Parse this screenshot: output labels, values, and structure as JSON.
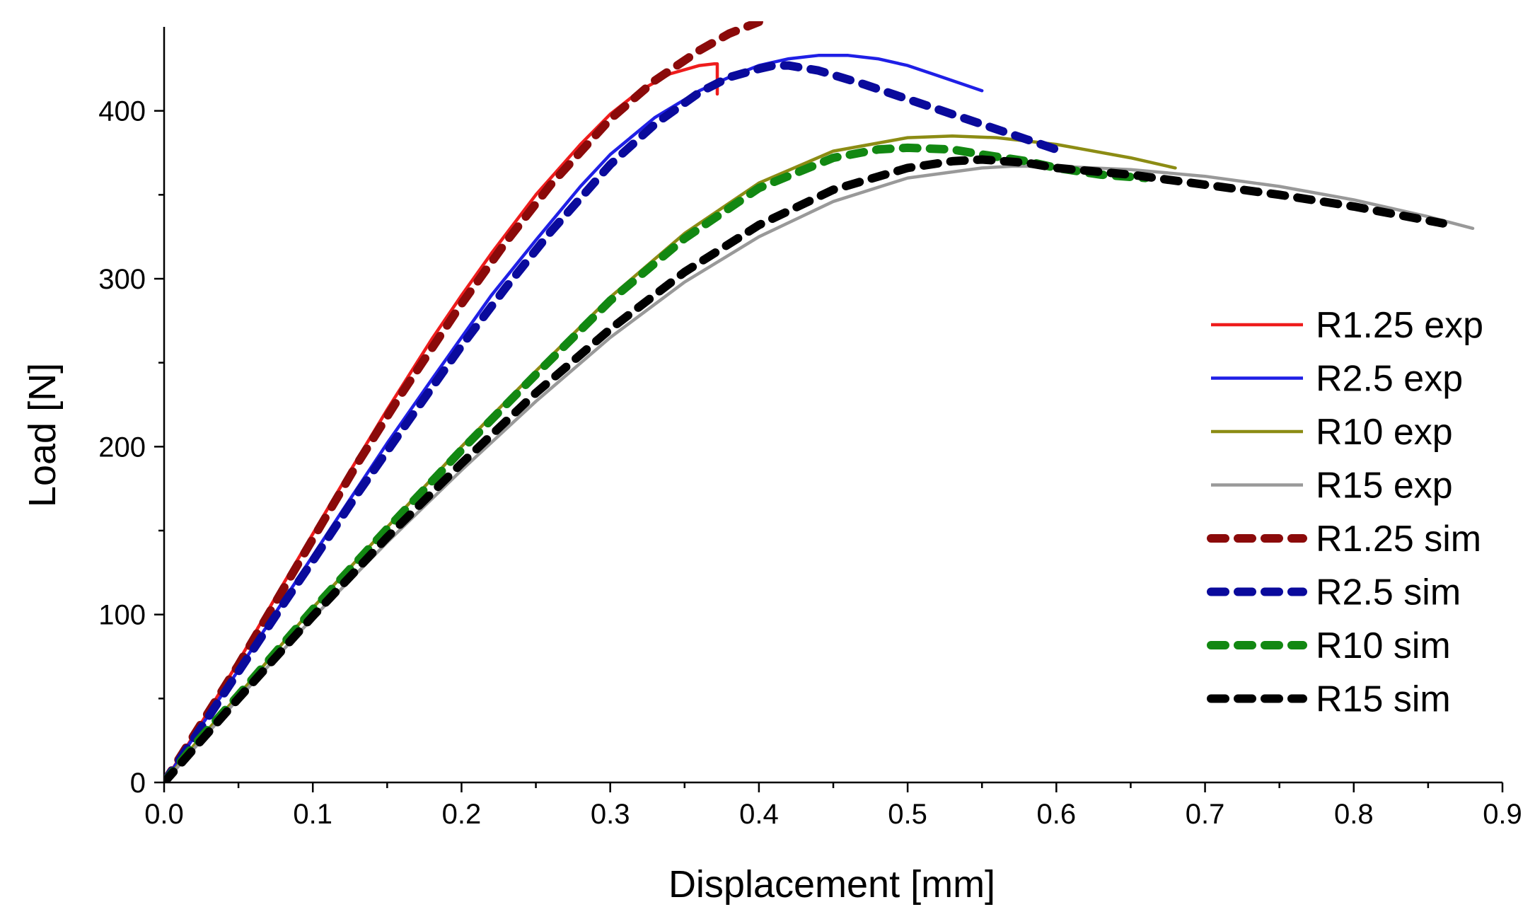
{
  "chart_data": {
    "type": "line",
    "title": "",
    "xlabel": "Displacement [mm]",
    "ylabel": "Load [N]",
    "xlim": [
      0,
      0.9
    ],
    "ylim": [
      0,
      450
    ],
    "xticks": [
      0.0,
      0.1,
      0.2,
      0.3,
      0.4,
      0.5,
      0.6,
      0.7,
      0.8,
      0.9
    ],
    "xtick_labels": [
      "0.0",
      "0.1",
      "0.2",
      "0.3",
      "0.4",
      "0.5",
      "0.6",
      "0.7",
      "0.8",
      "0.9"
    ],
    "yticks": [
      0,
      100,
      200,
      300,
      400
    ],
    "ytick_labels": [
      "0",
      "100",
      "200",
      "300",
      "400"
    ],
    "grid": false,
    "legend_position": "right",
    "series": [
      {
        "name": "R1.25 exp",
        "color": "#ee1c1c",
        "style": "solid",
        "x": [
          0,
          0.02,
          0.05,
          0.08,
          0.1,
          0.12,
          0.15,
          0.18,
          0.2,
          0.22,
          0.25,
          0.28,
          0.3,
          0.32,
          0.34,
          0.36,
          0.37,
          0.372,
          0.372
        ],
        "y": [
          0,
          28,
          72,
          118,
          148,
          178,
          222,
          264,
          290,
          315,
          350,
          380,
          398,
          412,
          422,
          427,
          428,
          428,
          410
        ]
      },
      {
        "name": "R2.5 exp",
        "color": "#1f1fe6",
        "style": "solid",
        "x": [
          0,
          0.02,
          0.05,
          0.08,
          0.1,
          0.12,
          0.15,
          0.18,
          0.2,
          0.22,
          0.25,
          0.28,
          0.3,
          0.33,
          0.36,
          0.38,
          0.4,
          0.42,
          0.44,
          0.46,
          0.48,
          0.5,
          0.52,
          0.55
        ],
        "y": [
          0,
          27,
          67,
          108,
          135,
          162,
          202,
          240,
          265,
          290,
          323,
          355,
          374,
          396,
          412,
          420,
          427,
          431,
          433,
          433,
          431,
          427,
          421,
          412
        ]
      },
      {
        "name": "R10 exp",
        "color": "#8c8c14",
        "style": "solid",
        "x": [
          0,
          0.02,
          0.05,
          0.1,
          0.15,
          0.2,
          0.25,
          0.3,
          0.35,
          0.4,
          0.45,
          0.5,
          0.53,
          0.56,
          0.6,
          0.65,
          0.68
        ],
        "y": [
          0,
          22,
          52,
          104,
          152,
          200,
          245,
          289,
          327,
          357,
          376,
          384,
          385,
          384,
          380,
          372,
          366
        ]
      },
      {
        "name": "R15 exp",
        "color": "#999999",
        "style": "solid",
        "x": [
          0,
          0.02,
          0.05,
          0.1,
          0.15,
          0.2,
          0.25,
          0.3,
          0.35,
          0.4,
          0.45,
          0.5,
          0.55,
          0.57,
          0.6,
          0.65,
          0.7,
          0.75,
          0.8,
          0.85,
          0.88
        ],
        "y": [
          0,
          20,
          50,
          98,
          143,
          186,
          227,
          265,
          298,
          325,
          346,
          360,
          366,
          367,
          367,
          365,
          361,
          355,
          347,
          337,
          330
        ]
      },
      {
        "name": "R1.25 sim",
        "color": "#8b0a0a",
        "style": "dashed",
        "x": [
          0,
          0.02,
          0.05,
          0.08,
          0.1,
          0.13,
          0.16,
          0.2,
          0.23,
          0.26,
          0.3,
          0.33,
          0.36,
          0.38,
          0.4
        ],
        "y": [
          0,
          28,
          70,
          115,
          145,
          190,
          232,
          285,
          322,
          356,
          395,
          418,
          436,
          446,
          453
        ]
      },
      {
        "name": "R2.5 sim",
        "color": "#0a0a9c",
        "style": "dashed",
        "x": [
          0,
          0.02,
          0.05,
          0.08,
          0.1,
          0.13,
          0.16,
          0.2,
          0.23,
          0.26,
          0.3,
          0.33,
          0.36,
          0.38,
          0.4,
          0.41,
          0.42,
          0.44,
          0.47,
          0.5,
          0.53,
          0.56,
          0.58,
          0.6
        ],
        "y": [
          0,
          26,
          66,
          106,
          132,
          172,
          210,
          260,
          295,
          328,
          368,
          392,
          411,
          420,
          425,
          427,
          427,
          424,
          416,
          407,
          398,
          389,
          383,
          377
        ]
      },
      {
        "name": "R10 sim",
        "color": "#128812",
        "style": "dashed",
        "x": [
          0,
          0.02,
          0.05,
          0.1,
          0.15,
          0.2,
          0.25,
          0.3,
          0.35,
          0.4,
          0.45,
          0.48,
          0.5,
          0.53,
          0.55,
          0.58,
          0.6,
          0.63,
          0.66
        ],
        "y": [
          0,
          22,
          52,
          103,
          151,
          198,
          243,
          287,
          324,
          354,
          372,
          377,
          378,
          377,
          374,
          370,
          366,
          362,
          360
        ]
      },
      {
        "name": "R15 sim",
        "color": "#000000",
        "style": "dashed",
        "x": [
          0,
          0.02,
          0.05,
          0.1,
          0.15,
          0.2,
          0.25,
          0.3,
          0.35,
          0.4,
          0.45,
          0.5,
          0.53,
          0.55,
          0.58,
          0.6,
          0.65,
          0.7,
          0.75,
          0.8,
          0.86
        ],
        "y": [
          0,
          20,
          50,
          99,
          146,
          190,
          232,
          270,
          304,
          332,
          353,
          366,
          370,
          371,
          369,
          366,
          362,
          356,
          350,
          343,
          333
        ]
      }
    ]
  }
}
